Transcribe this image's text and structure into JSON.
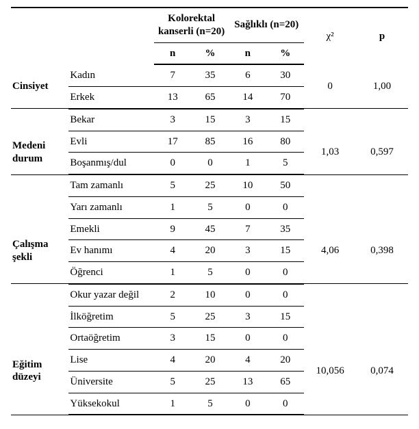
{
  "headers": {
    "group1": "Kolorektal kanserli (n=20)",
    "group2": "Sağlıklı (n=20)",
    "chi": "χ²",
    "p": "p",
    "n": "n",
    "pct": "%"
  },
  "blocks": [
    {
      "category": "Cinsiyet",
      "chi": "0",
      "p": "1,00",
      "rows": [
        {
          "label": "Kadın",
          "n1": "7",
          "p1": "35",
          "n2": "6",
          "p2": "30"
        },
        {
          "label": "Erkek",
          "n1": "13",
          "p1": "65",
          "n2": "14",
          "p2": "70"
        }
      ]
    },
    {
      "category": "Medeni durum",
      "chi": "1,03",
      "p": "0,597",
      "rows": [
        {
          "label": "Bekar",
          "n1": "3",
          "p1": "15",
          "n2": "3",
          "p2": "15"
        },
        {
          "label": "Evli",
          "n1": "17",
          "p1": "85",
          "n2": "16",
          "p2": "80"
        },
        {
          "label": "Boşanmış/dul",
          "n1": "0",
          "p1": "0",
          "n2": "1",
          "p2": "5"
        }
      ]
    },
    {
      "category": "Çalışma şekli",
      "chi": "4,06",
      "p": "0,398",
      "rows": [
        {
          "label": "Tam zamanlı",
          "n1": "5",
          "p1": "25",
          "n2": "10",
          "p2": "50"
        },
        {
          "label": "Yarı zamanlı",
          "n1": "1",
          "p1": "5",
          "n2": "0",
          "p2": "0"
        },
        {
          "label": "Emekli",
          "n1": "9",
          "p1": "45",
          "n2": "7",
          "p2": "35"
        },
        {
          "label": "Ev hanımı",
          "n1": "4",
          "p1": "20",
          "n2": "3",
          "p2": "15"
        },
        {
          "label": "Öğrenci",
          "n1": "1",
          "p1": "5",
          "n2": "0",
          "p2": "0"
        }
      ]
    },
    {
      "category": "Eğitim düzeyi",
      "chi": "10,056",
      "p": "0,074",
      "rows": [
        {
          "label": "Okur yazar değil",
          "n1": "2",
          "p1": "10",
          "n2": "0",
          "p2": "0"
        },
        {
          "label": "İlköğretim",
          "n1": "5",
          "p1": "25",
          "n2": "3",
          "p2": "15"
        },
        {
          "label": "Ortaöğretim",
          "n1": "3",
          "p1": "15",
          "n2": "0",
          "p2": "0"
        },
        {
          "label": "Lise",
          "n1": "4",
          "p1": "20",
          "n2": "4",
          "p2": "20"
        },
        {
          "label": "Üniversite",
          "n1": "5",
          "p1": "25",
          "n2": "13",
          "p2": "65"
        },
        {
          "label": "Yüksekokul",
          "n1": "1",
          "p1": "5",
          "n2": "0",
          "p2": "0"
        }
      ]
    }
  ]
}
